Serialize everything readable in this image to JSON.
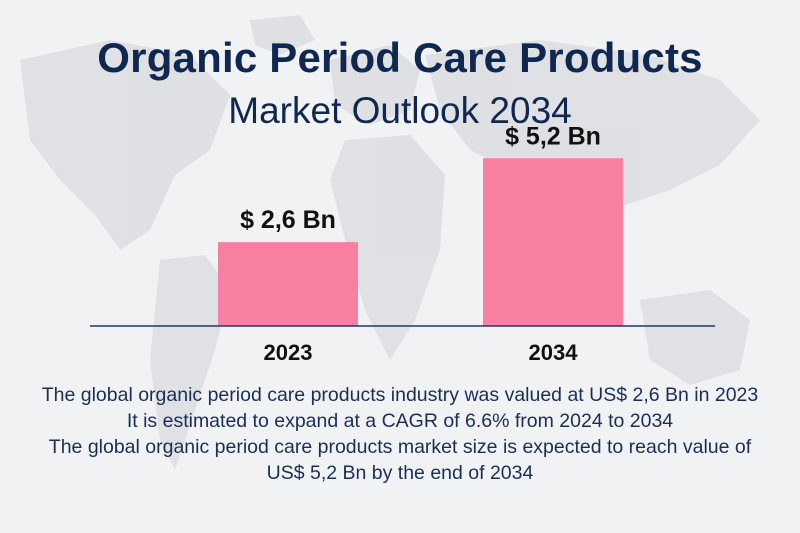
{
  "header": {
    "title": "Organic Period Care  Products",
    "subtitle": "Market Outlook 2034"
  },
  "colors": {
    "title": "#10284f",
    "bar": "#f77f9f",
    "axis": "#23375f",
    "map": "#dcdee2"
  },
  "chart_data": {
    "type": "bar",
    "categories": [
      "2023",
      "2034"
    ],
    "values": [
      2.6,
      5.2
    ],
    "data_labels": [
      "$ 2,6 Bn",
      "$ 5,2 Bn"
    ],
    "title": "",
    "xlabel": "",
    "ylabel": "",
    "ylim": [
      0,
      6.2
    ],
    "grid": false
  },
  "description": {
    "line1": "The global organic period care products industry was valued at US$ 2,6 Bn in 2023",
    "line2": "It is estimated to expand at a CAGR of 6.6% from 2024 to 2034",
    "line3": "The global organic period care products market size is expected to reach value of US$ 5,2 Bn by the end of 2034"
  }
}
